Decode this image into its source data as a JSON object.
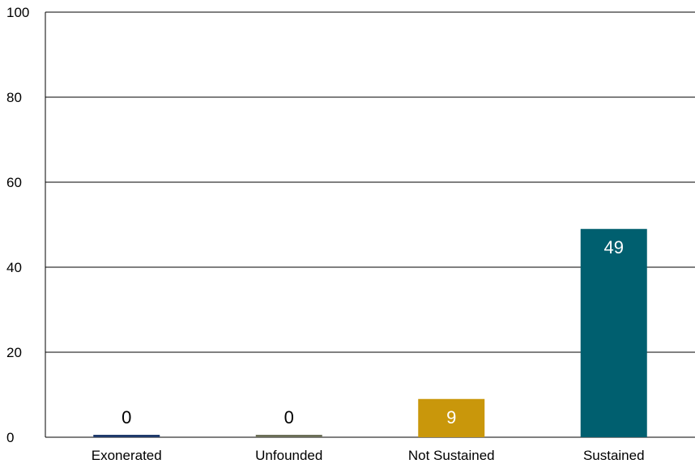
{
  "chart_data": {
    "type": "bar",
    "categories": [
      "Exonerated",
      "Unfounded",
      "Not Sustained",
      "Sustained"
    ],
    "values": [
      0,
      0,
      9,
      49
    ],
    "colors": [
      "#1f3a6b",
      "#6b6f58",
      "#c9970b",
      "#005f6f"
    ],
    "label_colors": [
      "#000000",
      "#000000",
      "#ffffff",
      "#ffffff"
    ],
    "ylim": [
      0,
      100
    ],
    "yticks": [
      0,
      20,
      40,
      60,
      80,
      100
    ],
    "grid": true,
    "legend": "none"
  }
}
